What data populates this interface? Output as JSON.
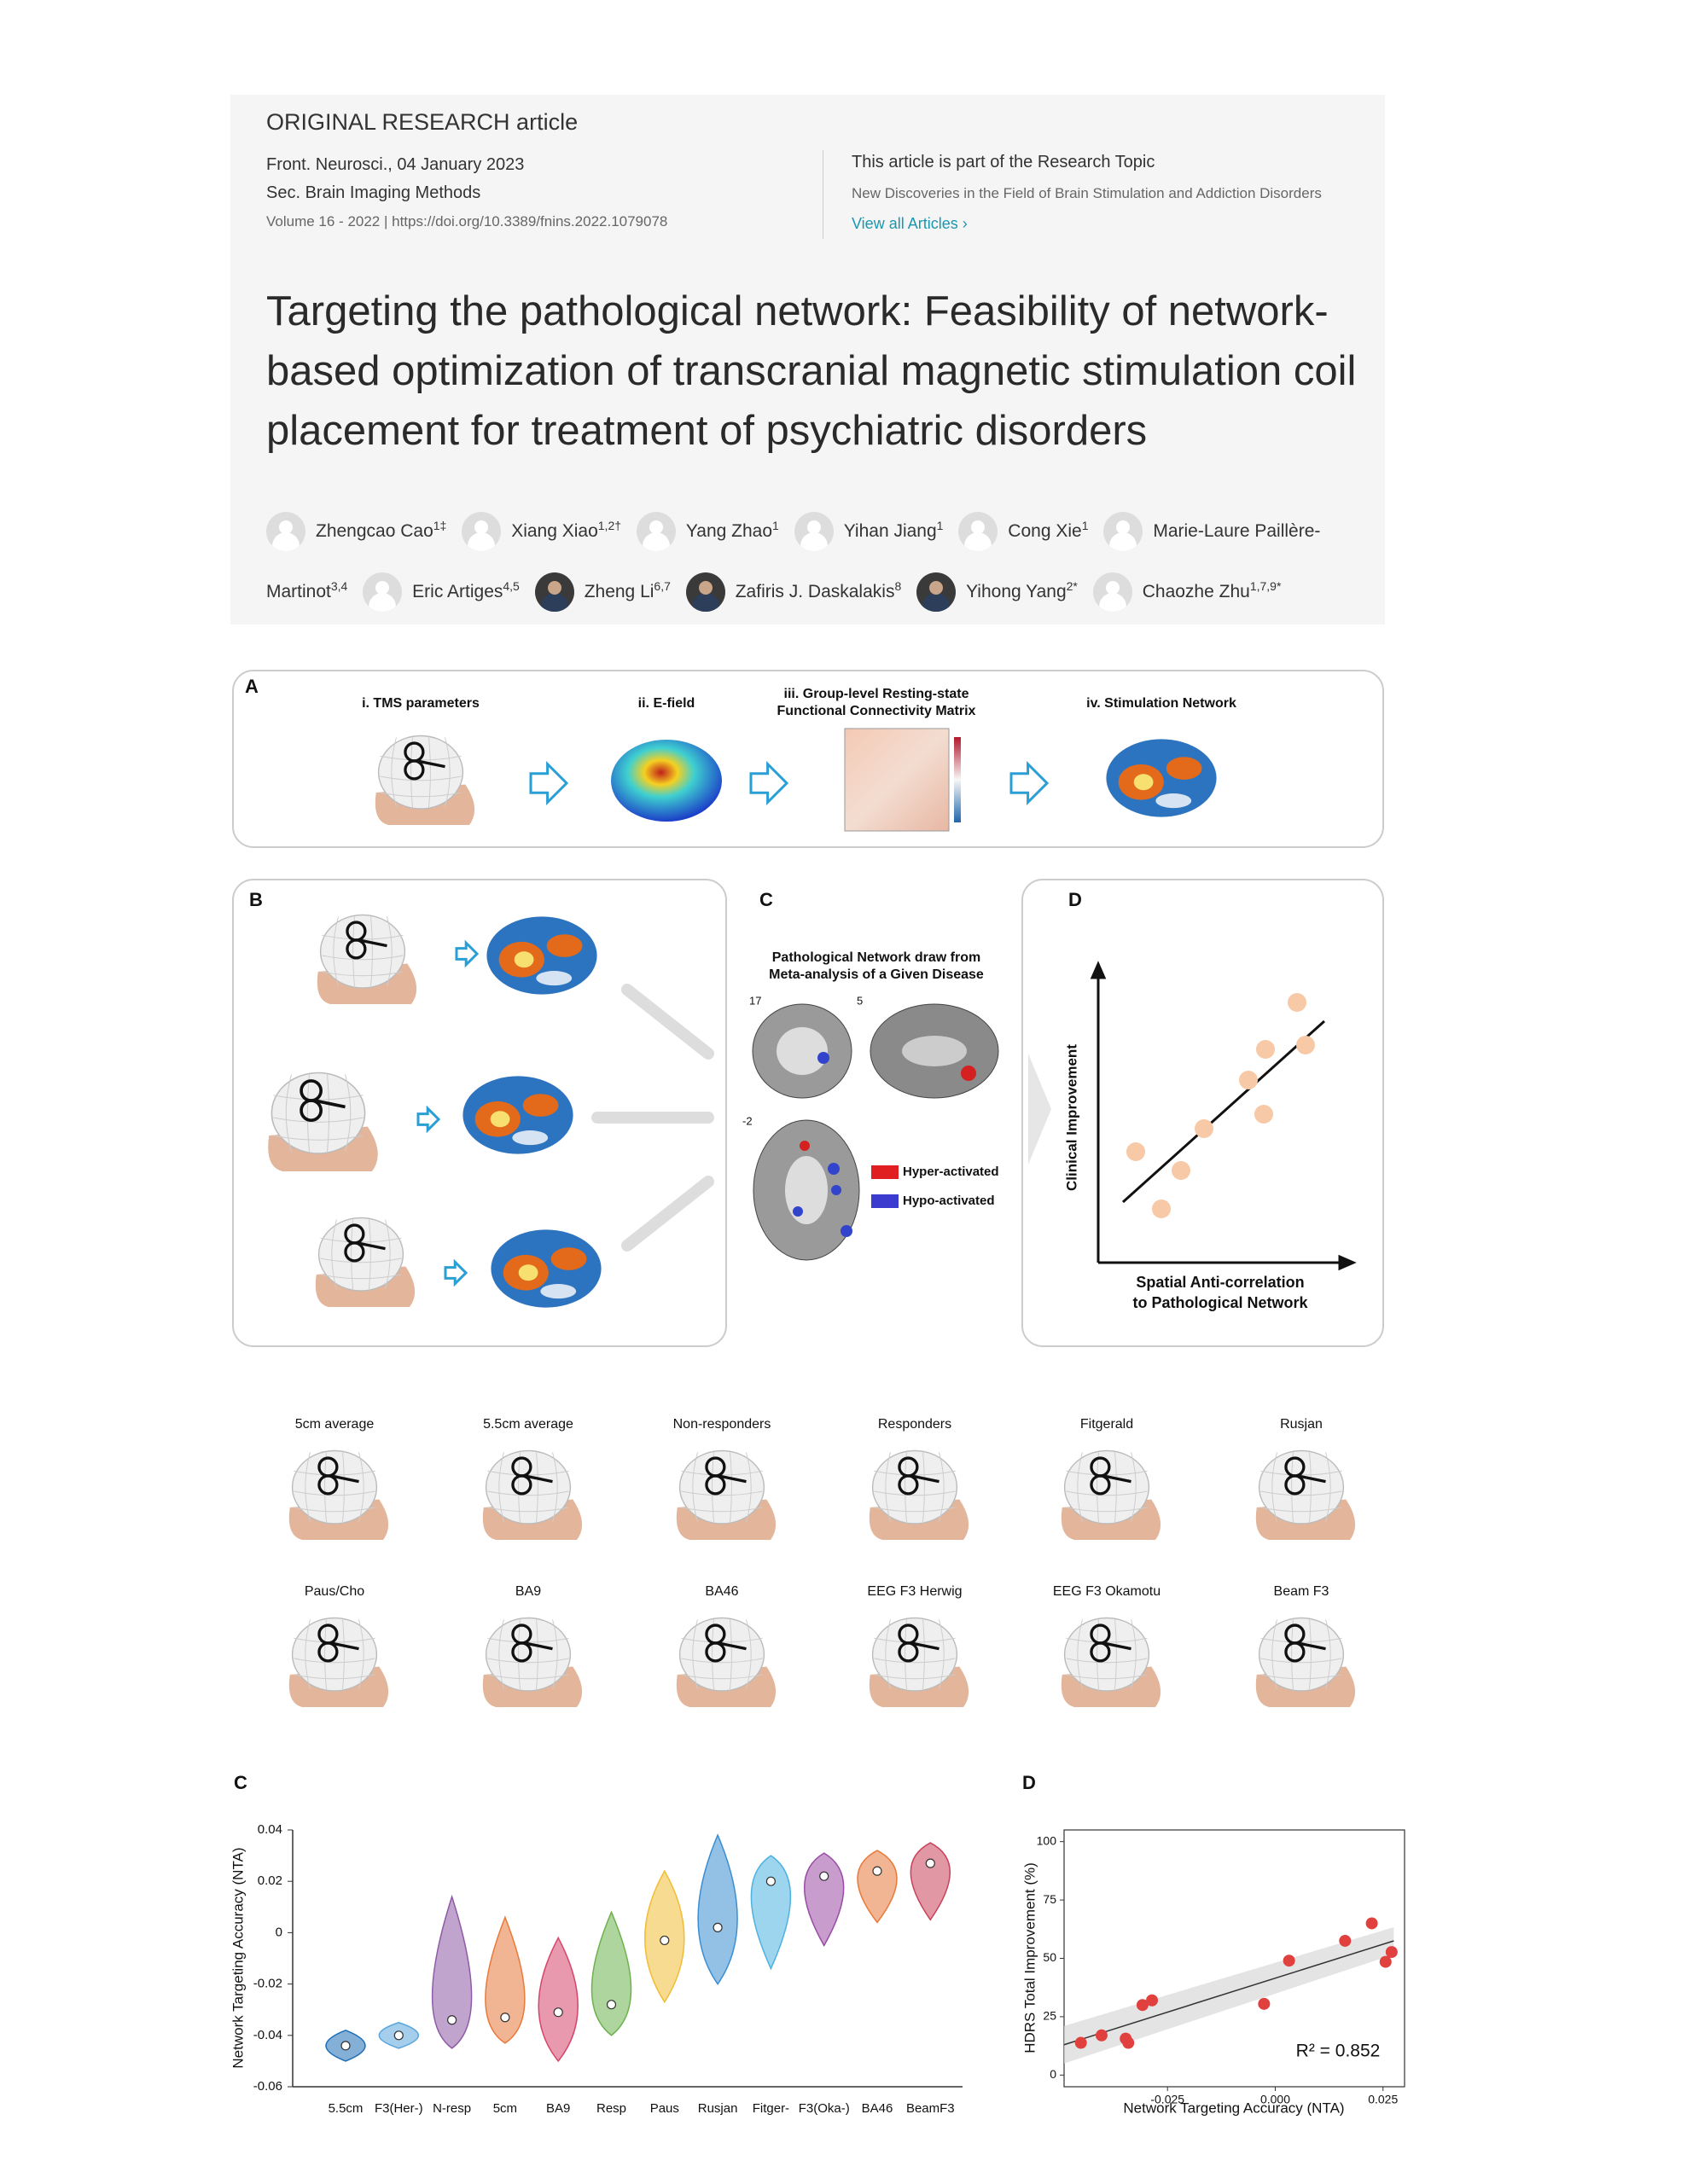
{
  "header": {
    "article_type": "ORIGINAL RESEARCH article",
    "journal_date": "Front. Neurosci., 04 January 2023",
    "section": "Sec. Brain Imaging Methods",
    "volume_doi": "Volume 16 - 2022 | https://doi.org/10.3389/fnins.2022.1079078",
    "topic_intro": "This article is part of the Research Topic",
    "topic": "New Discoveries in the Field of Brain Stimulation and Addiction Disorders",
    "view_all": "View all Articles",
    "title": "Targeting the pathological network: Feasibility of network-based optimization of transcranial magnetic stimulation coil placement for treatment of psychiatric disorders"
  },
  "authors": [
    {
      "name": "Zhengcao Cao",
      "sup": "1‡"
    },
    {
      "name": "Xiang Xiao",
      "sup": "1,2†"
    },
    {
      "name": "Yang Zhao",
      "sup": "1"
    },
    {
      "name": "Yihan Jiang",
      "sup": "1"
    },
    {
      "name": "Cong Xie",
      "sup": "1"
    },
    {
      "name": "Marie-Laure Paillère-Martinot",
      "sup": "3,4"
    },
    {
      "name": "Eric Artiges",
      "sup": "4,5"
    },
    {
      "name": "Zheng Li",
      "sup": "6,7",
      "photo": true
    },
    {
      "name": "Zafiris J. Daskalakis",
      "sup": "8",
      "photo": true
    },
    {
      "name": "Yihong Yang",
      "sup": "2*",
      "photo": true
    },
    {
      "name": "Chaozhe Zhu",
      "sup": "1,7,9*"
    }
  ],
  "figure1": {
    "panel_a": {
      "label": "A",
      "step1": "i. TMS parameters",
      "step2": "ii. E-field",
      "step3_line1": "iii. Group-level Resting-state",
      "step3_line2": "Functional Connectivity Matrix",
      "step4": "iv. Stimulation Network"
    },
    "panel_b": {
      "label": "B"
    },
    "panel_c": {
      "label": "C",
      "title_line1": "Pathological Network draw from",
      "title_line2": "Meta-analysis of a Given Disease",
      "slice1": "17",
      "slice2": "5",
      "slice3": "-2",
      "legend_hyper": "Hyper-activated",
      "legend_hypo": "Hypo-activated"
    },
    "panel_d": {
      "label": "D",
      "y_label": "Clinical Improvement",
      "x_label_line1": "Spatial Anti-correlation",
      "x_label_line2": "to Pathological Network"
    }
  },
  "figure2": {
    "heads": [
      "5cm average",
      "5.5cm average",
      "Non-responders",
      "Responders",
      "Fitgerald",
      "Rusjan",
      "Paus/Cho",
      "BA9",
      "BA46",
      "EEG F3 Herwig",
      "EEG F3 Okamotu",
      "Beam F3"
    ]
  },
  "chart_data": [
    {
      "type": "violin",
      "panel_label": "C",
      "y_label": "Network Targeting Accuracy (NTA)",
      "categories": [
        "5.5cm",
        "F3(Her-)",
        "N-resp",
        "5cm",
        "BA9",
        "Resp",
        "Paus",
        "Rusjan",
        "Fitger-",
        "F3(Oka-)",
        "BA46",
        "BeamF3"
      ],
      "values": [
        -0.044,
        -0.04,
        -0.034,
        -0.033,
        -0.031,
        -0.028,
        -0.003,
        0.002,
        0.02,
        0.022,
        0.024,
        0.027
      ],
      "min": [
        -0.05,
        -0.045,
        -0.045,
        -0.043,
        -0.05,
        -0.04,
        -0.027,
        -0.02,
        -0.014,
        -0.005,
        0.004,
        0.005
      ],
      "max": [
        -0.038,
        -0.035,
        0.014,
        0.006,
        -0.002,
        0.008,
        0.024,
        0.038,
        0.03,
        0.031,
        0.032,
        0.035
      ],
      "colors": [
        "#1f6fb8",
        "#5aa6dc",
        "#8e5aa6",
        "#e8793a",
        "#d6456a",
        "#6db24f",
        "#f0bd35",
        "#3b8ed2",
        "#4db2e0",
        "#9a4ca6",
        "#e8793a",
        "#c8425a"
      ],
      "ylim": [
        -0.06,
        0.04
      ],
      "yticks": [
        0.04,
        0.02,
        0,
        -0.02,
        -0.04,
        -0.06
      ]
    },
    {
      "type": "scatter",
      "panel_label": "D",
      "y_label": "HDRS Total Improvement (%)",
      "x_label": "Network Targeting Accuracy (NTA)",
      "x": [
        -0.0451,
        -0.0403,
        -0.0347,
        -0.0341,
        -0.0308,
        -0.0286,
        -0.0026,
        0.0032,
        0.0162,
        0.0224,
        0.0256,
        0.027
      ],
      "values": [
        13.8,
        17,
        15.6,
        13.8,
        30,
        32,
        30.5,
        49,
        57.5,
        65,
        48.5,
        52.7
      ],
      "color": "#e0413f",
      "fit": {
        "x": [
          -0.049,
          0.0275
        ],
        "y": [
          13,
          57.5
        ]
      },
      "annotation": "R² = 0.852",
      "xlim": [
        -0.049,
        0.03
      ],
      "ylim": [
        -5,
        105
      ],
      "xticks": [
        -0.025,
        {
          "value": 0,
          "label": "0.000"
        },
        0.025
      ],
      "yticks": [
        0,
        25,
        50,
        75,
        100
      ]
    }
  ]
}
